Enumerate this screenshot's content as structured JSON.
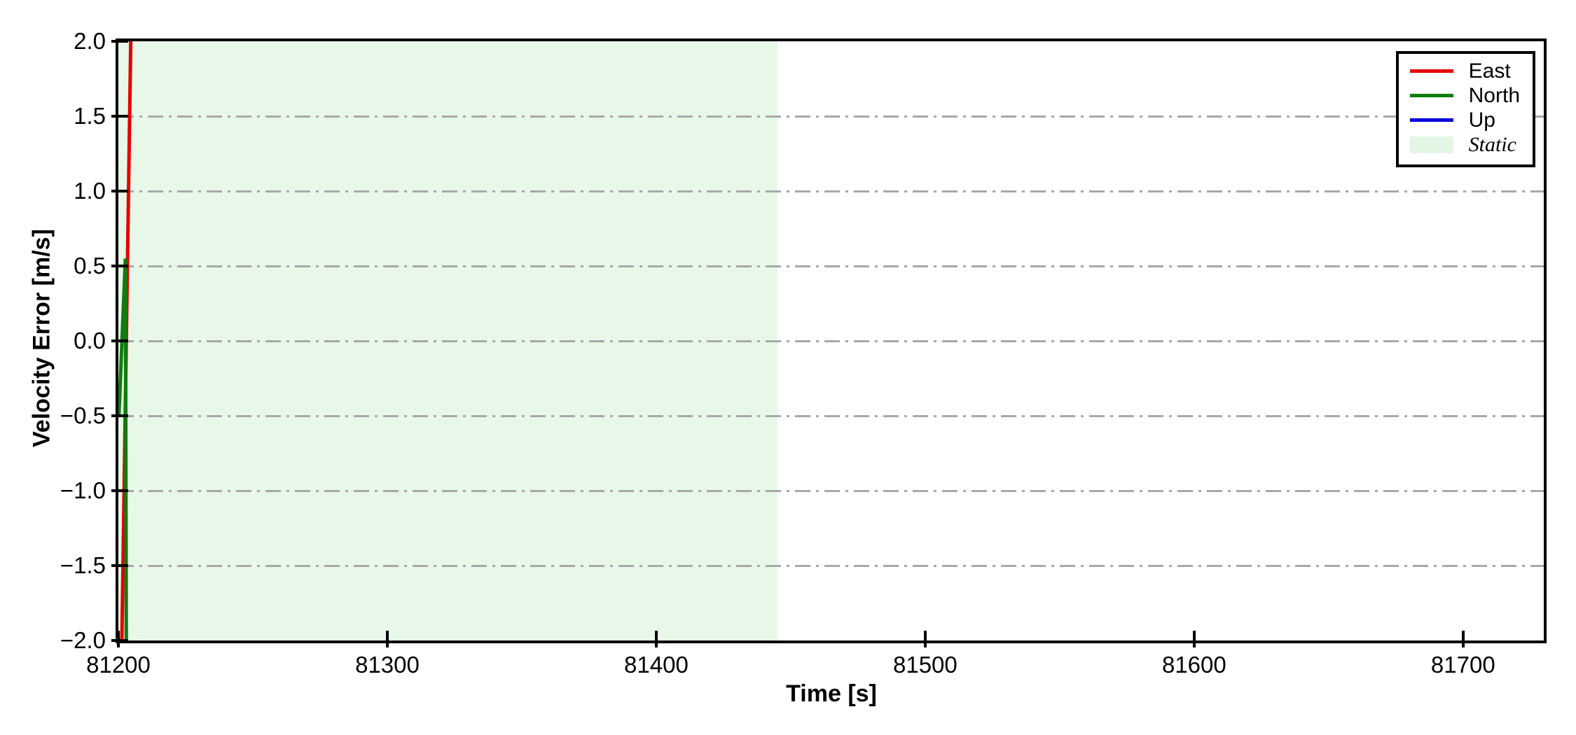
{
  "chart_data": {
    "type": "line",
    "title": "",
    "xlabel": "Time [s]",
    "ylabel": "Velocity Error [m/s]",
    "xlim": [
      81200,
      81730
    ],
    "ylim": [
      -2.0,
      2.0
    ],
    "x_ticks": [
      81200,
      81300,
      81400,
      81500,
      81600,
      81700
    ],
    "x_tick_labels": [
      "81200",
      "81300",
      "81400",
      "81500",
      "81600",
      "81700"
    ],
    "y_ticks": [
      2.0,
      1.5,
      1.0,
      0.5,
      0.0,
      -0.5,
      -1.0,
      -1.5,
      -2.0
    ],
    "y_tick_labels": [
      "2.0",
      "1.5",
      "1.0",
      "0.5",
      "0.0",
      "−0.5",
      "−1.0",
      "−1.5",
      "−2.0"
    ],
    "grid": {
      "on": true,
      "axis": "y",
      "style": "dash-dot",
      "color": "#a8a8a8",
      "y_values": [
        1.5,
        1.0,
        0.5,
        0.0,
        -0.5,
        -1.0,
        -1.5
      ]
    },
    "series": [
      {
        "name": "East",
        "color": "#e60000",
        "width": 5,
        "points": [
          [
            81201.3,
            -2.0
          ],
          [
            81204.6,
            2.0
          ]
        ]
      },
      {
        "name": "North",
        "color": "#0e7d0e",
        "width": 5,
        "points": [
          [
            81200.2,
            -0.5
          ],
          [
            81202.6,
            0.55
          ],
          [
            81202.95,
            -2.0
          ]
        ]
      },
      {
        "name": "Up",
        "color": "#0000dd",
        "width": 5,
        "points": []
      }
    ],
    "regions": [
      {
        "name": "Static",
        "x_start": 81200,
        "x_end": 81445,
        "color": "#e8f8e8"
      }
    ],
    "legend": {
      "position": "upper right",
      "entries": [
        {
          "label": "East",
          "swatch": "line",
          "color": "#e60000",
          "italic": false
        },
        {
          "label": "North",
          "swatch": "line",
          "color": "#0e7d0e",
          "italic": false
        },
        {
          "label": "Up",
          "swatch": "line",
          "color": "#0000dd",
          "italic": false
        },
        {
          "label": "Static",
          "swatch": "patch",
          "color": "#e3f5e3",
          "italic": true
        }
      ]
    }
  }
}
